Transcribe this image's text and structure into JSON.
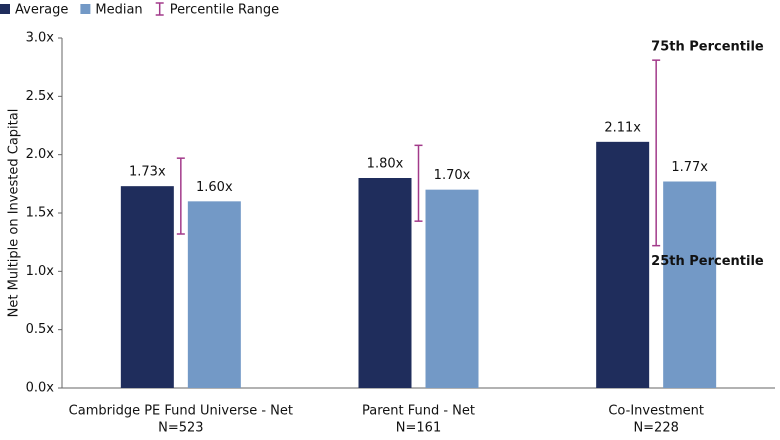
{
  "chart_data": {
    "type": "grouped_bar_range",
    "y_axis_label": "Net Multiple on Invested Capital",
    "categories": [
      "Cambridge PE Fund Universe - Net",
      "Parent Fund - Net",
      "Co-Investment"
    ],
    "category_notes": [
      "N=523",
      "N=161",
      "N=228"
    ],
    "series": [
      {
        "name": "Average",
        "color": "#1f2d5c",
        "values": [
          1.73,
          1.8,
          2.11
        ],
        "value_labels": [
          "1.73x",
          "1.80x",
          "2.11x"
        ]
      },
      {
        "name": "Median",
        "color": "#7399c6",
        "values": [
          1.6,
          1.7,
          1.77
        ],
        "value_labels": [
          "1.60x",
          "1.70x",
          "1.77x"
        ]
      }
    ],
    "percentile_range": {
      "name": "Percentile Range",
      "color": "#a23a8a",
      "low": [
        1.32,
        1.43,
        1.22
      ],
      "high": [
        1.97,
        2.08,
        2.81
      ]
    },
    "annotations": [
      "75th Percentile",
      "25th Percentile"
    ],
    "ylim": [
      0,
      3
    ],
    "yticks": [
      {
        "value": 0,
        "label": "0.0x"
      },
      {
        "value": 0.5,
        "label": "0.5x"
      },
      {
        "value": 1,
        "label": "1.0x"
      },
      {
        "value": 1.5,
        "label": "1.5x"
      },
      {
        "value": 2,
        "label": "2.0x"
      },
      {
        "value": 2.5,
        "label": "2.5x"
      },
      {
        "value": 3,
        "label": "3.0x"
      }
    ],
    "legend": "top-left"
  }
}
